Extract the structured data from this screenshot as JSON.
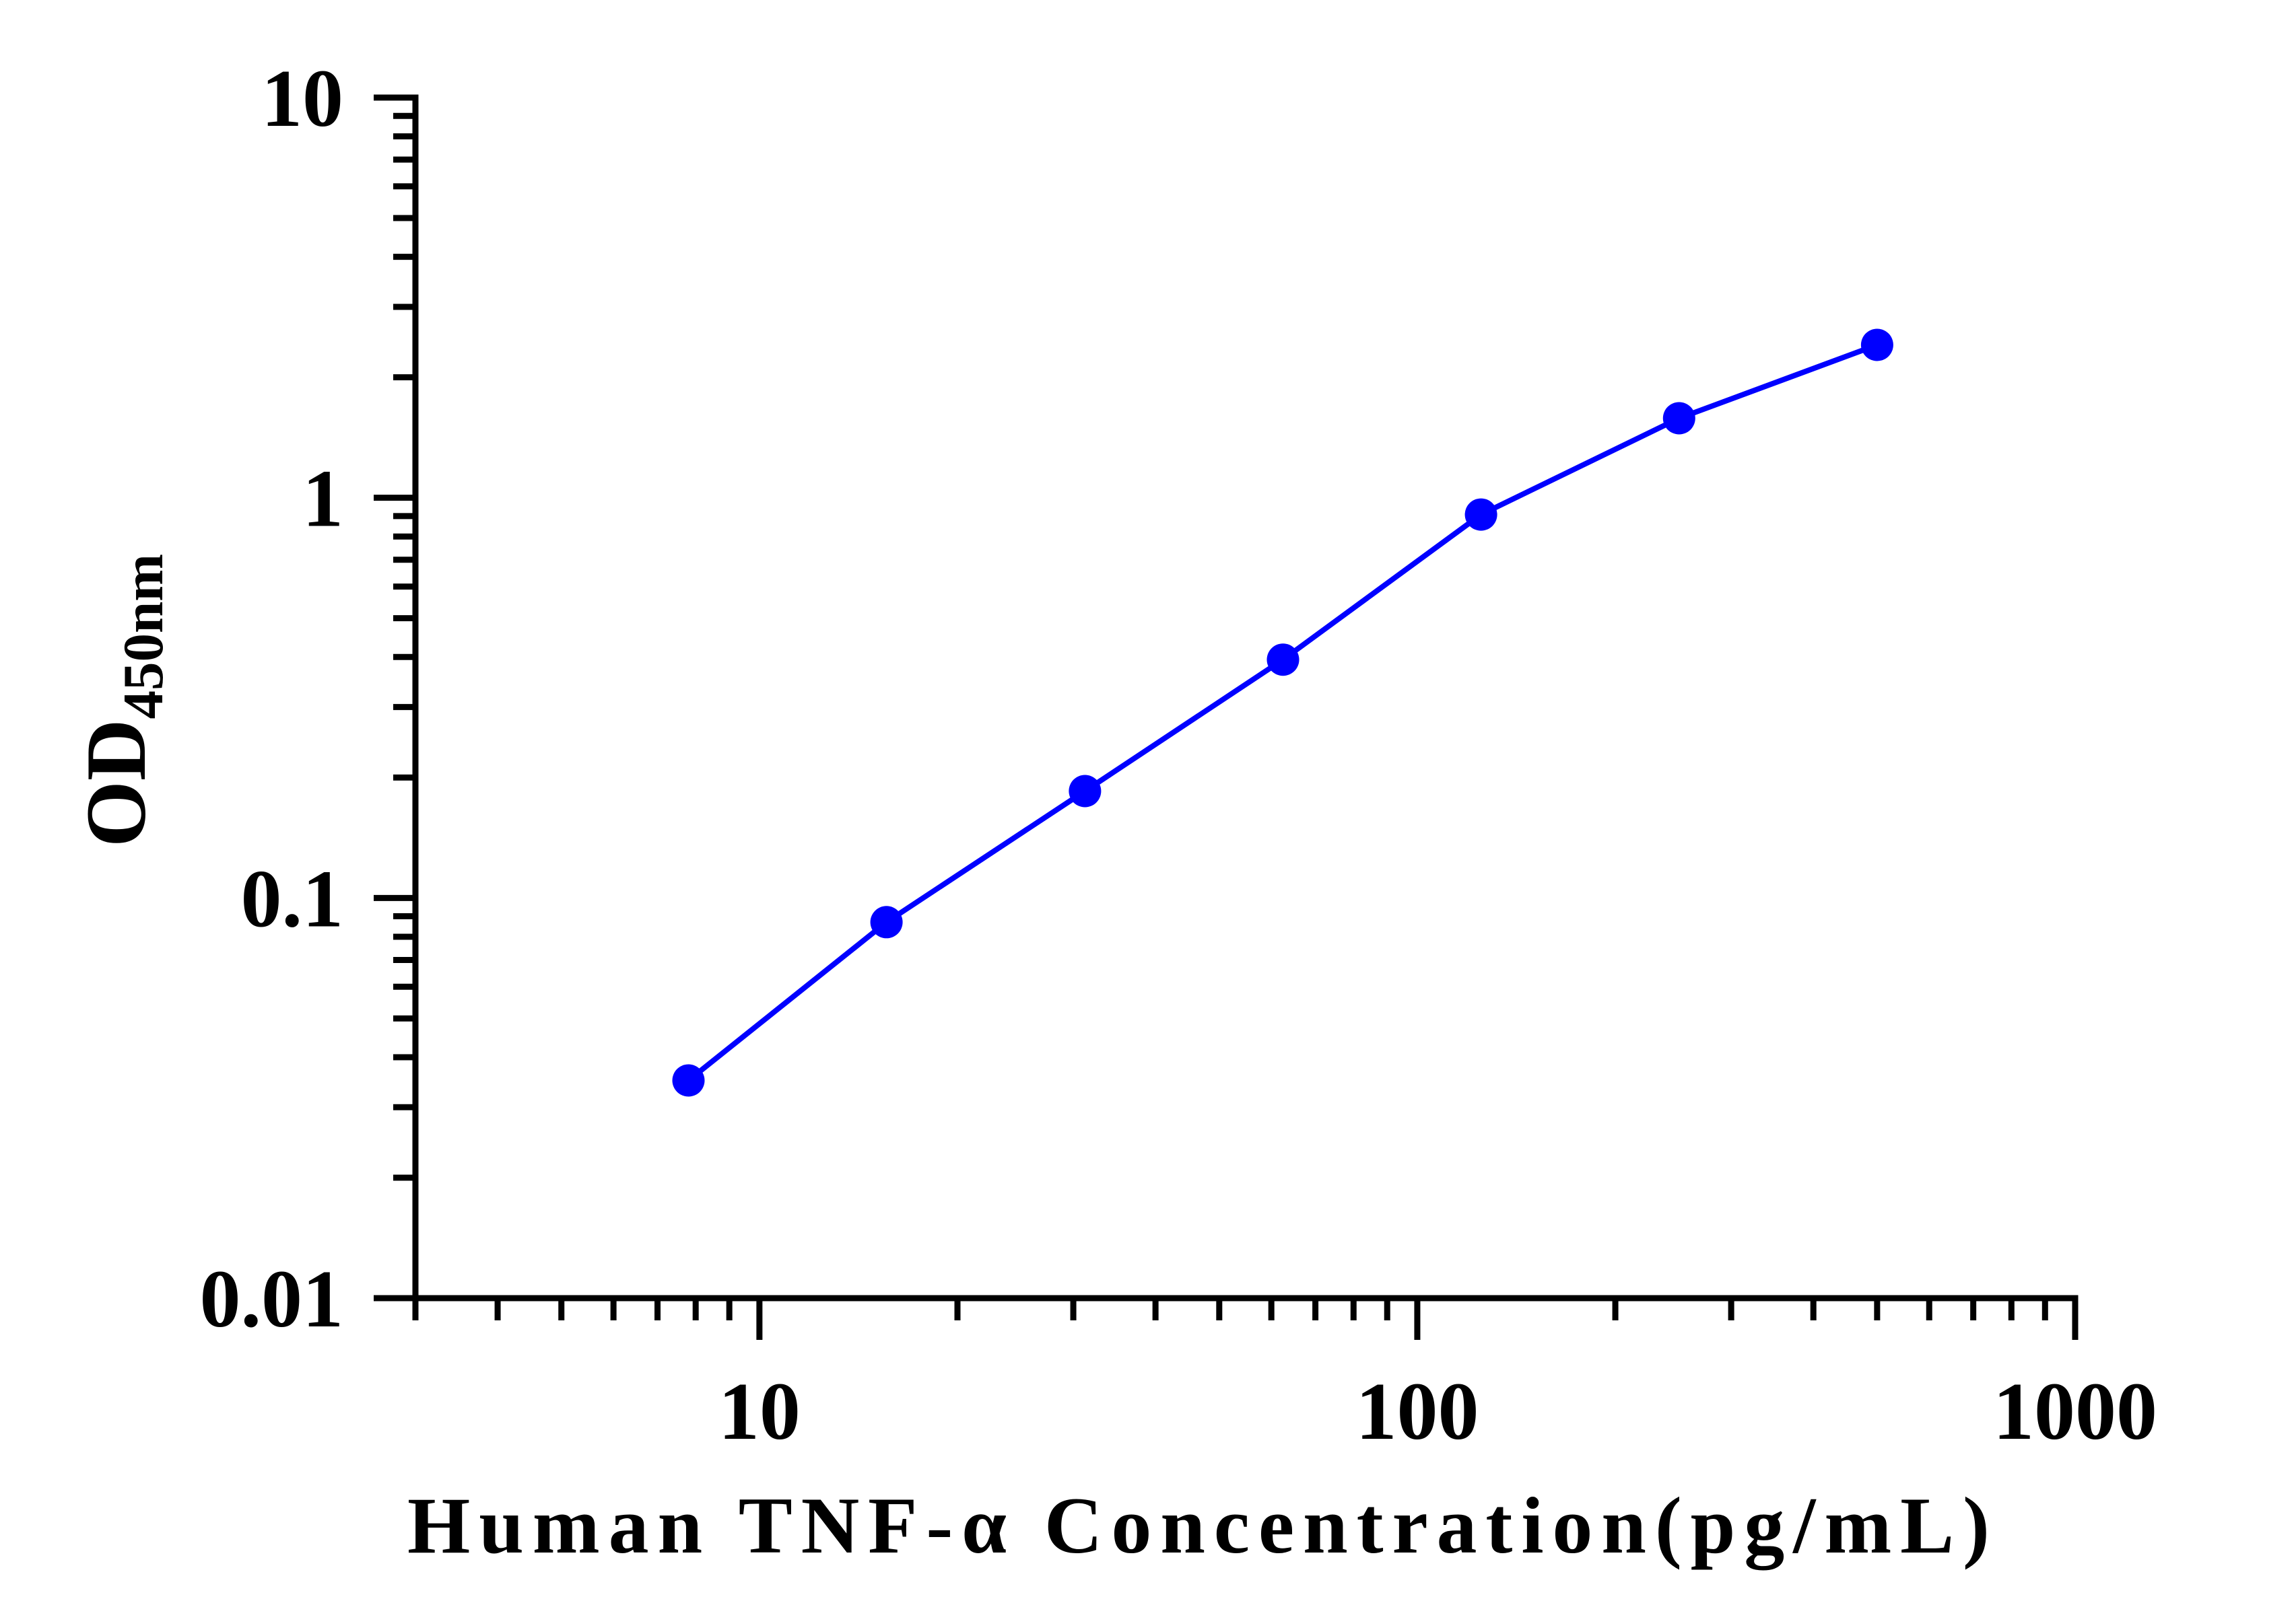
{
  "chart_data": {
    "type": "line",
    "x": [
      7.8,
      15.6,
      31.25,
      62.5,
      125,
      250,
      500
    ],
    "series": [
      {
        "values": [
          0.035,
          0.087,
          0.185,
          0.394,
          0.908,
          1.58,
          2.41
        ]
      }
    ],
    "xlabel": "Human TNF-α Concentration(pg/mL)",
    "ylabel": "OD",
    "ylabel_subscript": "450nm",
    "xscale": "log",
    "yscale": "log",
    "xlim": [
      3,
      1000
    ],
    "ylim": [
      0.01,
      10
    ],
    "xticks": [
      "10",
      "100",
      "1000"
    ],
    "yticks": [
      "10",
      "1",
      "0.1",
      "0.01"
    ],
    "grid": false,
    "legend": "none"
  },
  "colors": {
    "series": "#0000FF",
    "axis": "#000000",
    "background": "#FFFFFF"
  }
}
